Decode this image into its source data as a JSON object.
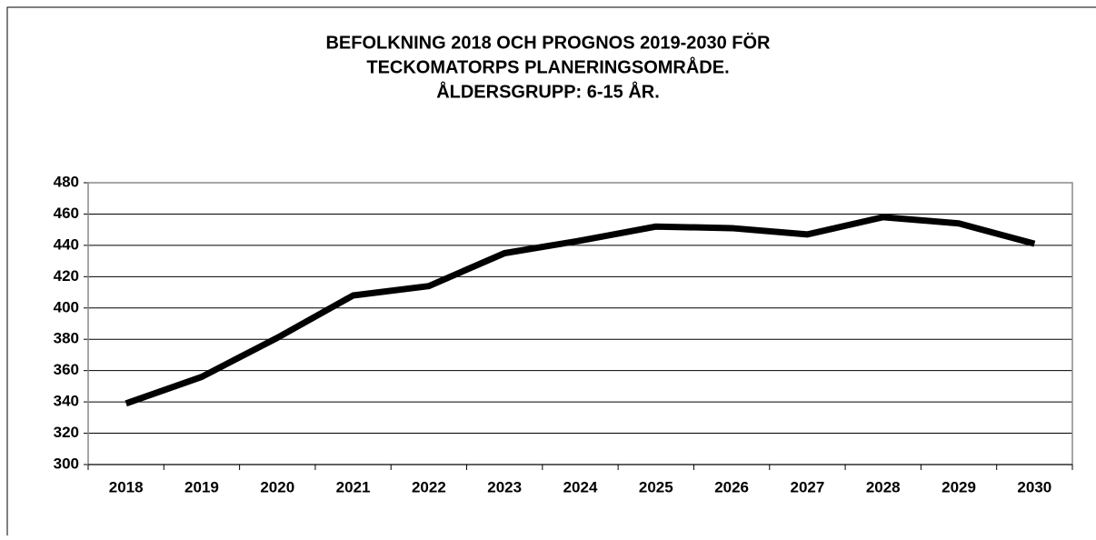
{
  "chart_data": {
    "type": "line",
    "title": [
      "BEFOLKNING 2018 OCH PROGNOS 2019-2030 FÖR",
      "TECKOMATORPS PLANERINGSOMRÅDE.",
      "ÅLDERSGRUPP: 6-15 ÅR."
    ],
    "categories": [
      "2018",
      "2019",
      "2020",
      "2021",
      "2022",
      "2023",
      "2024",
      "2025",
      "2026",
      "2027",
      "2028",
      "2029",
      "2030"
    ],
    "series": [
      {
        "color": "#000000",
        "values": [
          339,
          356,
          381,
          408,
          414,
          435,
          443,
          452,
          451,
          447,
          458,
          454,
          441
        ]
      }
    ],
    "ylim": [
      300,
      480
    ],
    "yticks": [
      300,
      320,
      340,
      360,
      380,
      400,
      420,
      440,
      460,
      480
    ],
    "grid": true
  }
}
